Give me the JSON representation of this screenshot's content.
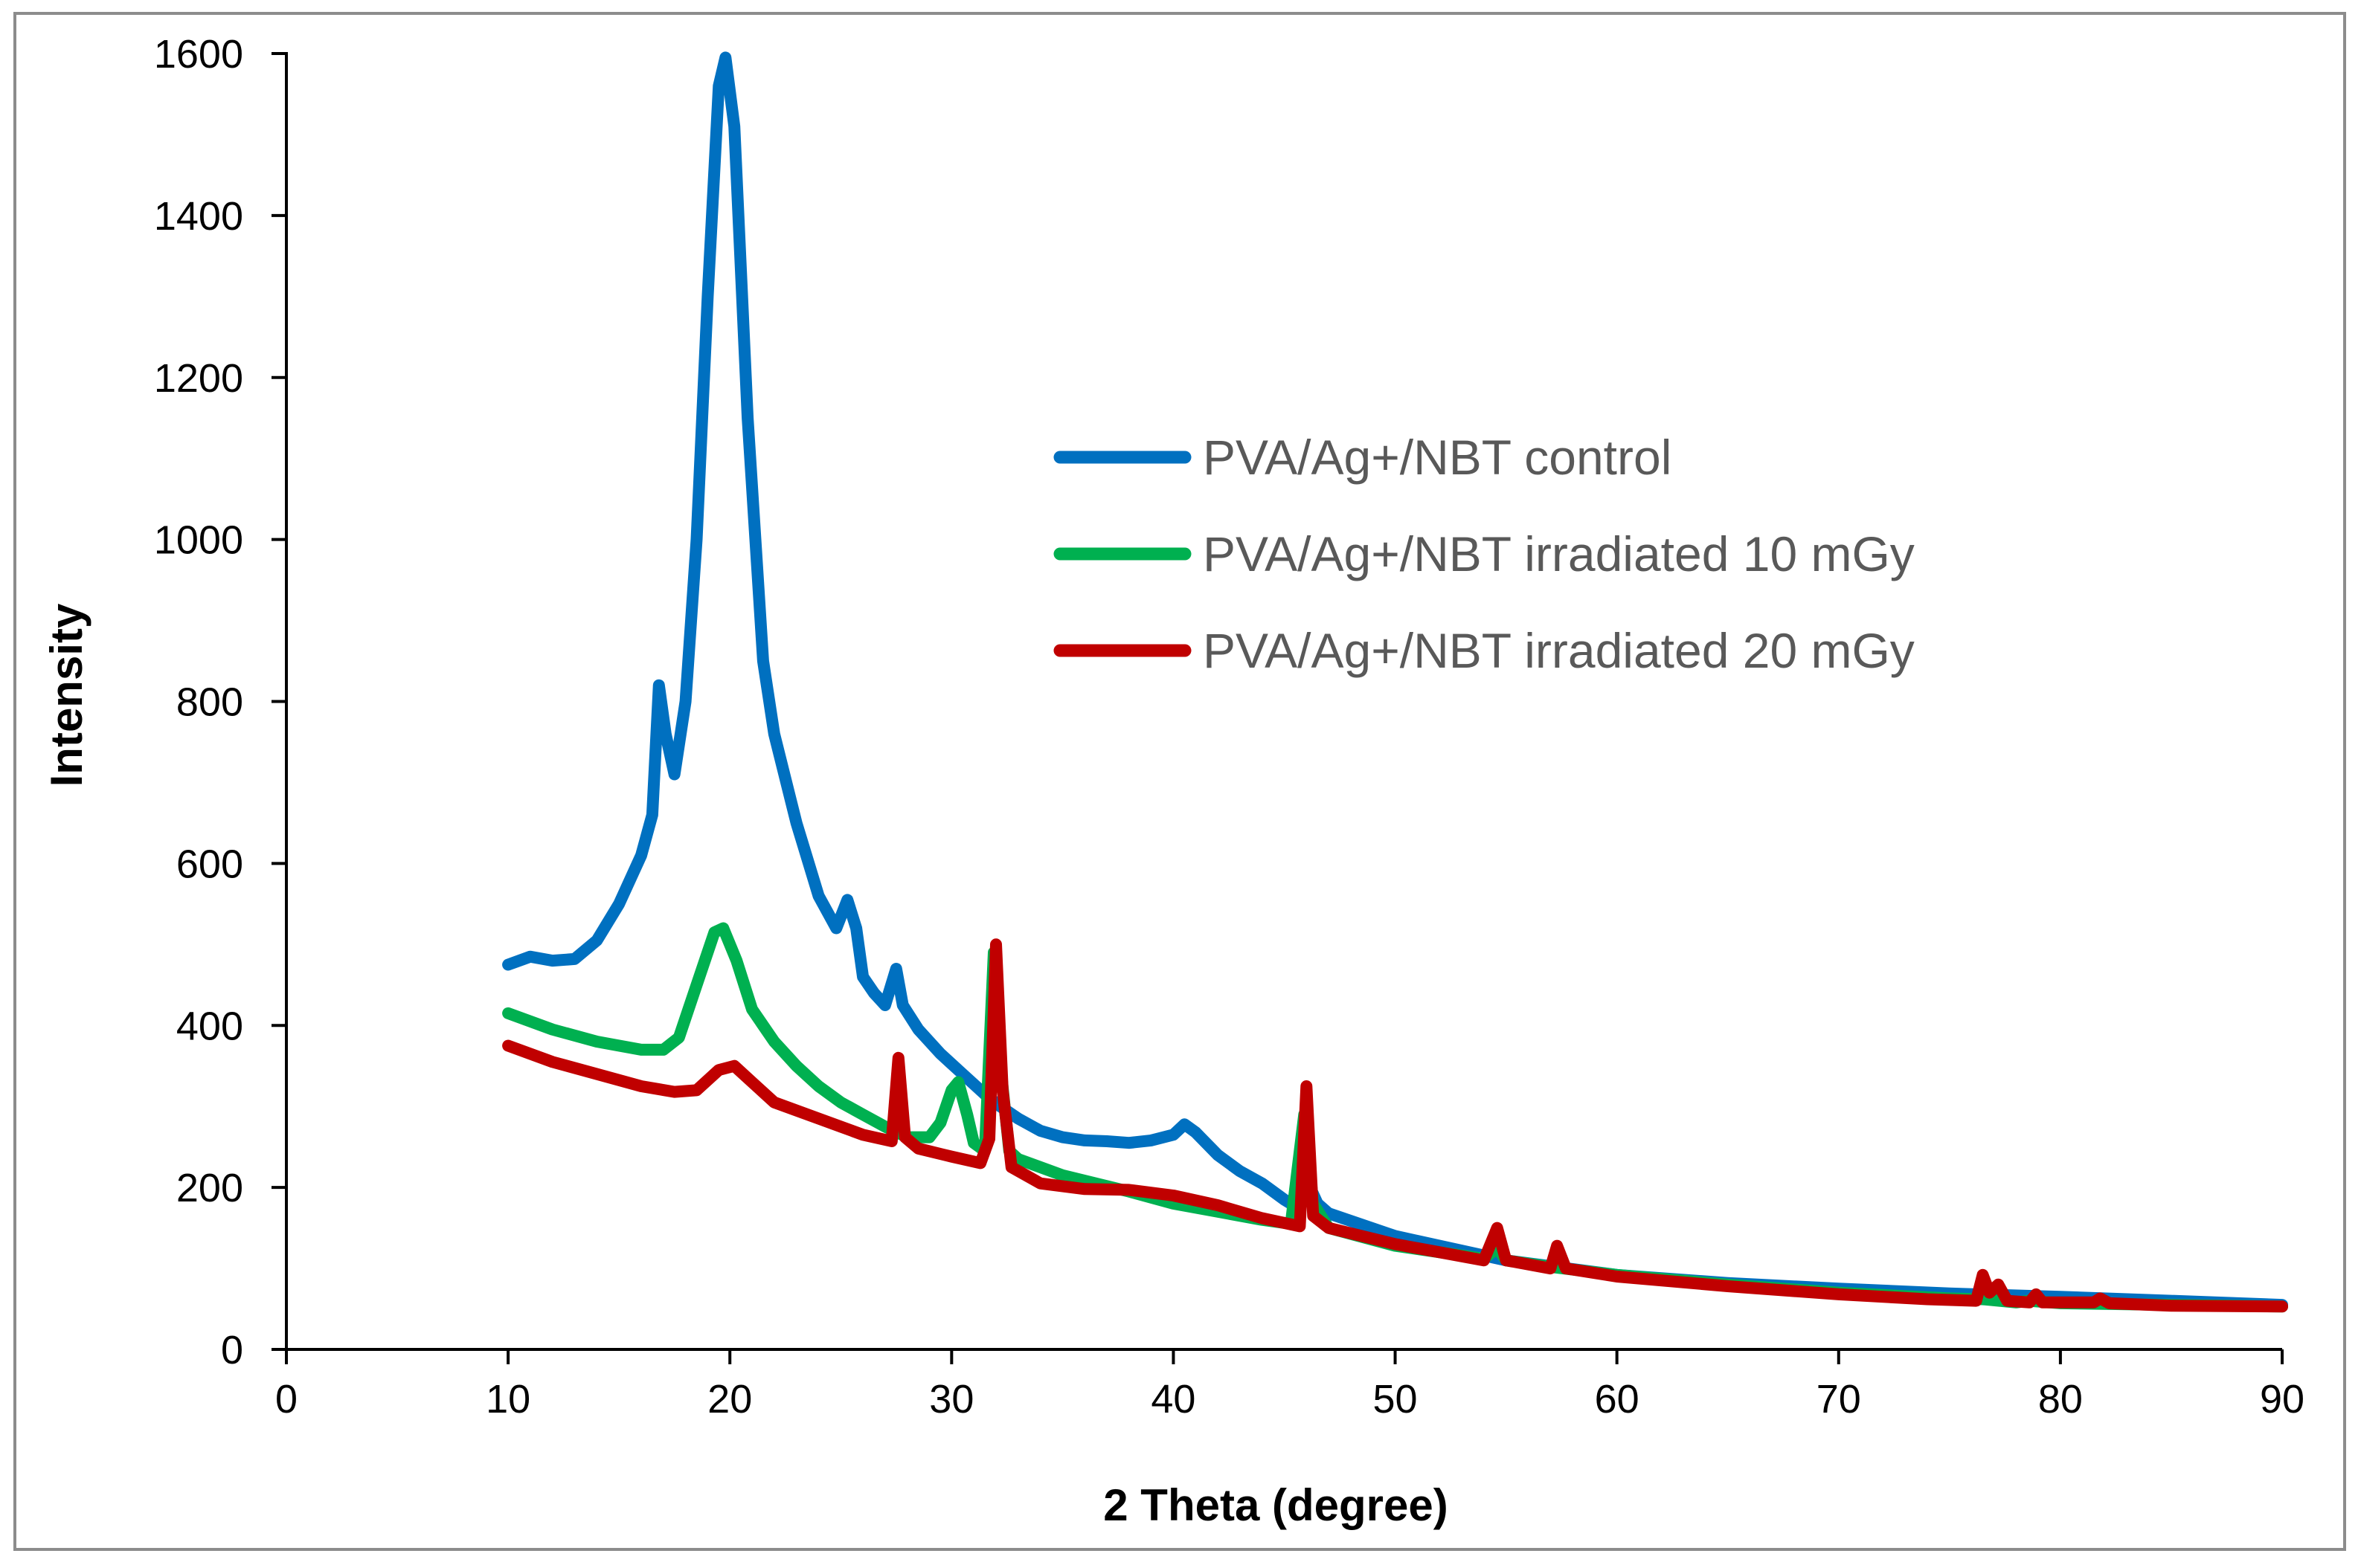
{
  "chart_data": {
    "type": "line",
    "title": "",
    "xlabel": "2 Theta (degree)",
    "ylabel": "Intensity",
    "xlim": [
      0,
      90
    ],
    "ylim": [
      0,
      1600
    ],
    "xticks": [
      0,
      10,
      20,
      30,
      40,
      50,
      60,
      70,
      80,
      90
    ],
    "yticks": [
      0,
      200,
      400,
      600,
      800,
      1000,
      1200,
      1400,
      1600
    ],
    "grid": false,
    "legend_position": "right, upper-middle",
    "series": [
      {
        "name": "PVA/Ag+/NBT control",
        "color": "#0070c0",
        "points": [
          [
            10,
            475
          ],
          [
            11,
            485
          ],
          [
            12,
            480
          ],
          [
            13,
            482
          ],
          [
            14,
            505
          ],
          [
            15,
            550
          ],
          [
            16,
            610
          ],
          [
            16.5,
            660
          ],
          [
            16.8,
            820
          ],
          [
            17.1,
            760
          ],
          [
            17.5,
            710
          ],
          [
            18,
            800
          ],
          [
            18.5,
            1000
          ],
          [
            19,
            1300
          ],
          [
            19.5,
            1560
          ],
          [
            19.8,
            1595
          ],
          [
            20.2,
            1510
          ],
          [
            20.8,
            1150
          ],
          [
            21.5,
            850
          ],
          [
            22,
            760
          ],
          [
            23,
            650
          ],
          [
            24,
            560
          ],
          [
            24.8,
            520
          ],
          [
            25.3,
            555
          ],
          [
            25.7,
            520
          ],
          [
            26,
            460
          ],
          [
            26.5,
            440
          ],
          [
            27,
            425
          ],
          [
            27.5,
            470
          ],
          [
            27.8,
            425
          ],
          [
            28.5,
            395
          ],
          [
            29.5,
            365
          ],
          [
            30.5,
            340
          ],
          [
            31.5,
            315
          ],
          [
            32.2,
            300
          ],
          [
            33,
            285
          ],
          [
            34,
            270
          ],
          [
            35,
            262
          ],
          [
            36,
            258
          ],
          [
            37,
            257
          ],
          [
            38,
            255
          ],
          [
            39,
            258
          ],
          [
            40,
            265
          ],
          [
            40.5,
            278
          ],
          [
            41,
            268
          ],
          [
            42,
            240
          ],
          [
            43,
            220
          ],
          [
            44,
            205
          ],
          [
            45,
            185
          ],
          [
            45.6,
            175
          ],
          [
            46,
            210
          ],
          [
            46.5,
            180
          ],
          [
            47,
            168
          ],
          [
            50,
            140
          ],
          [
            55,
            110
          ],
          [
            60,
            92
          ],
          [
            65,
            82
          ],
          [
            70,
            75
          ],
          [
            75,
            69
          ],
          [
            80,
            65
          ],
          [
            85,
            60
          ],
          [
            90,
            55
          ]
        ]
      },
      {
        "name": "PVA/Ag+/NBT irradiated 10 mGy",
        "color": "#00b050",
        "points": [
          [
            10,
            415
          ],
          [
            12,
            395
          ],
          [
            14,
            380
          ],
          [
            16,
            370
          ],
          [
            17,
            370
          ],
          [
            17.7,
            385
          ],
          [
            18.5,
            450
          ],
          [
            19.3,
            515
          ],
          [
            19.7,
            520
          ],
          [
            20.3,
            480
          ],
          [
            21,
            420
          ],
          [
            22,
            380
          ],
          [
            23,
            350
          ],
          [
            24,
            325
          ],
          [
            25,
            305
          ],
          [
            26,
            290
          ],
          [
            27,
            275
          ],
          [
            28,
            262
          ],
          [
            29,
            262
          ],
          [
            29.5,
            280
          ],
          [
            30,
            320
          ],
          [
            30.3,
            330
          ],
          [
            30.7,
            290
          ],
          [
            31,
            255
          ],
          [
            31.5,
            245
          ],
          [
            31.9,
            490
          ],
          [
            32.2,
            350
          ],
          [
            32.6,
            245
          ],
          [
            33,
            235
          ],
          [
            35,
            215
          ],
          [
            38,
            195
          ],
          [
            40,
            180
          ],
          [
            42,
            170
          ],
          [
            44,
            160
          ],
          [
            45.3,
            155
          ],
          [
            45.9,
            290
          ],
          [
            46.3,
            180
          ],
          [
            47,
            150
          ],
          [
            50,
            128
          ],
          [
            54,
            112
          ],
          [
            54.6,
            125
          ],
          [
            55,
            110
          ],
          [
            57,
            102
          ],
          [
            60,
            92
          ],
          [
            65,
            80
          ],
          [
            70,
            70
          ],
          [
            75,
            63
          ],
          [
            76.5,
            62
          ],
          [
            78,
            58
          ],
          [
            78.6,
            60
          ],
          [
            80,
            57
          ],
          [
            85,
            55
          ],
          [
            90,
            53
          ]
        ]
      },
      {
        "name": "PVA/Ag+/NBT irradiated 20 mGy",
        "color": "#c00000",
        "points": [
          [
            10,
            375
          ],
          [
            12,
            355
          ],
          [
            14,
            340
          ],
          [
            16,
            325
          ],
          [
            17.5,
            318
          ],
          [
            18.5,
            320
          ],
          [
            19.5,
            345
          ],
          [
            20.2,
            350
          ],
          [
            21,
            330
          ],
          [
            22,
            305
          ],
          [
            24,
            285
          ],
          [
            26,
            265
          ],
          [
            27.3,
            257
          ],
          [
            27.6,
            360
          ],
          [
            27.9,
            262
          ],
          [
            28.5,
            248
          ],
          [
            30,
            238
          ],
          [
            31.3,
            230
          ],
          [
            31.7,
            260
          ],
          [
            32,
            500
          ],
          [
            32.3,
            320
          ],
          [
            32.7,
            225
          ],
          [
            34,
            205
          ],
          [
            36,
            198
          ],
          [
            38,
            197
          ],
          [
            40,
            190
          ],
          [
            42,
            178
          ],
          [
            44,
            162
          ],
          [
            45.7,
            152
          ],
          [
            46,
            325
          ],
          [
            46.3,
            165
          ],
          [
            47,
            150
          ],
          [
            50,
            130
          ],
          [
            54,
            110
          ],
          [
            54.6,
            150
          ],
          [
            55,
            110
          ],
          [
            57,
            100
          ],
          [
            57.3,
            128
          ],
          [
            57.7,
            100
          ],
          [
            60,
            90
          ],
          [
            65,
            78
          ],
          [
            70,
            68
          ],
          [
            74,
            62
          ],
          [
            76.2,
            60
          ],
          [
            76.5,
            92
          ],
          [
            76.8,
            70
          ],
          [
            77.2,
            80
          ],
          [
            77.6,
            60
          ],
          [
            78.6,
            58
          ],
          [
            78.9,
            68
          ],
          [
            79.2,
            58
          ],
          [
            81.5,
            58
          ],
          [
            81.8,
            63
          ],
          [
            82.2,
            57
          ],
          [
            85,
            54
          ],
          [
            90,
            53
          ]
        ]
      }
    ]
  }
}
